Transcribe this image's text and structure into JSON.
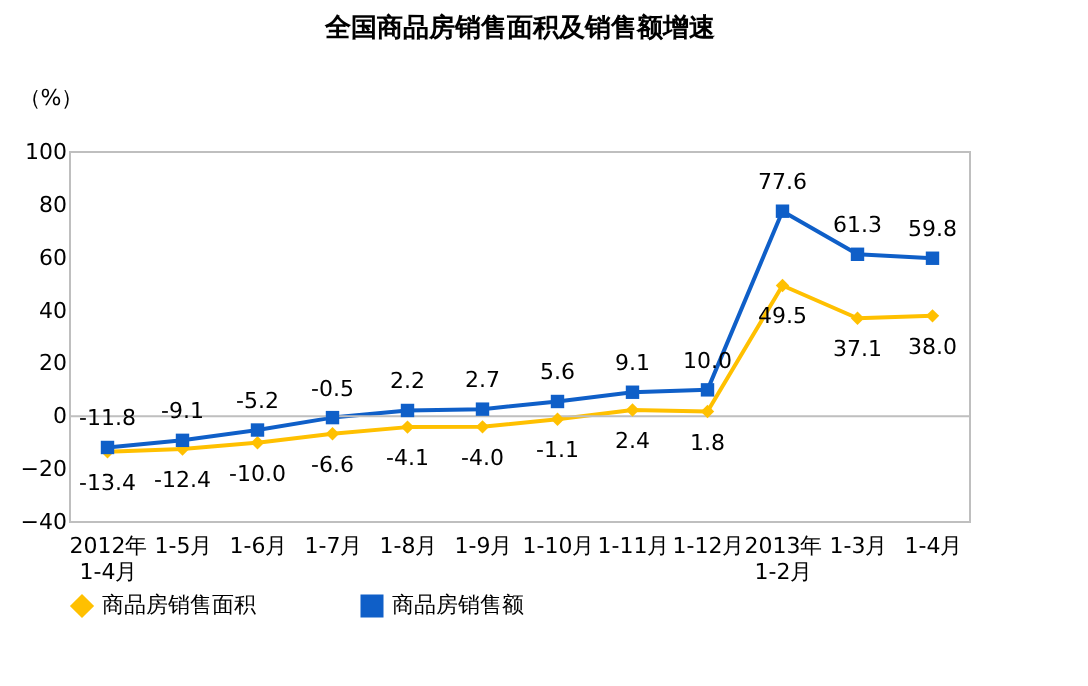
{
  "chart_data": {
    "type": "line",
    "title": "全国商品房销售面积及销售额增速",
    "ylabel": "（%）",
    "categories": [
      "2012年\n1-4月",
      "1-5月",
      "1-6月",
      "1-7月",
      "1-8月",
      "1-9月",
      "1-10月",
      "1-11月",
      "1-12月",
      "2013年\n1-2月",
      "1-3月",
      "1-4月"
    ],
    "series": [
      {
        "name": "商品房销售面积",
        "color": "#ffc000",
        "marker": "diamond",
        "values": [
          -13.4,
          -12.4,
          -10.0,
          -6.6,
          -4.1,
          -4.0,
          -1.1,
          2.4,
          1.8,
          49.5,
          37.1,
          38.0
        ],
        "value_labels": [
          "-13.4",
          "-12.4",
          "-10.0",
          "-6.6",
          "-4.1",
          "-4.0",
          "-1.1",
          "2.4",
          "1.8",
          "49.5",
          "37.1",
          "38.0"
        ]
      },
      {
        "name": "商品房销售额",
        "color": "#0f5fc8",
        "marker": "square",
        "values": [
          -11.8,
          -9.1,
          -5.2,
          -0.5,
          2.2,
          2.7,
          5.6,
          9.1,
          10.0,
          77.6,
          61.3,
          59.8
        ],
        "value_labels": [
          "-11.8",
          "-9.1",
          "-5.2",
          "-0.5",
          "2.2",
          "2.7",
          "5.6",
          "9.1",
          "10.0",
          "77.6",
          "61.3",
          "59.8"
        ]
      }
    ],
    "ylim": [
      -40,
      100
    ],
    "yticks": [
      -40,
      -20,
      0,
      20,
      40,
      60,
      80,
      100
    ],
    "ref_lines": [
      {
        "axis": "y",
        "value": 0,
        "color": "#bfbfbf"
      }
    ],
    "data_labels": true,
    "legend": "bottom",
    "grid": false
  }
}
